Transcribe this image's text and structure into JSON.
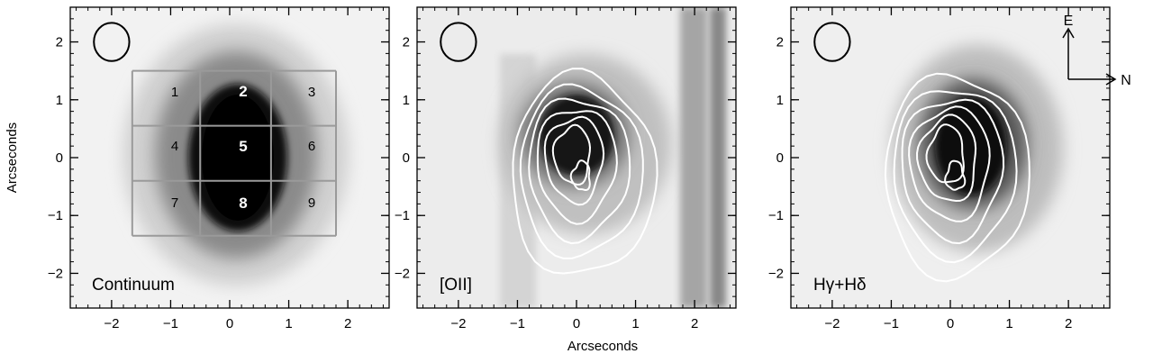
{
  "figure": {
    "shared_xlabel": "Arcseconds",
    "shared_ylabel": "Arcseconds",
    "panels": [
      {
        "label": "Continuum",
        "grid_labels": [
          "1",
          "2",
          "3",
          "4",
          "5",
          "6",
          "7",
          "8",
          "9"
        ]
      },
      {
        "label": "[OII]"
      },
      {
        "label": "Hγ+Hδ"
      }
    ],
    "compass": {
      "east": "E",
      "north": "N"
    }
  },
  "chart_data": {
    "type": "heatmap",
    "xlim": [
      -2.7,
      2.7
    ],
    "ylim": [
      -2.6,
      2.6
    ],
    "xticks": [
      "−2",
      "−1",
      "0",
      "1",
      "2"
    ],
    "yticks": [
      "2",
      "1",
      "0",
      "−1",
      "−2"
    ],
    "xtick_values": [
      -2,
      -1,
      0,
      1,
      2
    ],
    "ytick_values": [
      2,
      1,
      0,
      -1,
      -2
    ],
    "beam": {
      "x": -2.0,
      "y": 2.0,
      "rx": 0.3,
      "ry": 0.33
    },
    "continuum_grid": {
      "x_edges": [
        -1.65,
        -0.5,
        0.7,
        1.8
      ],
      "y_edges": [
        1.5,
        0.55,
        -0.4,
        -1.35
      ]
    },
    "contour_center": {
      "x": 0.1,
      "y": -0.15
    }
  }
}
